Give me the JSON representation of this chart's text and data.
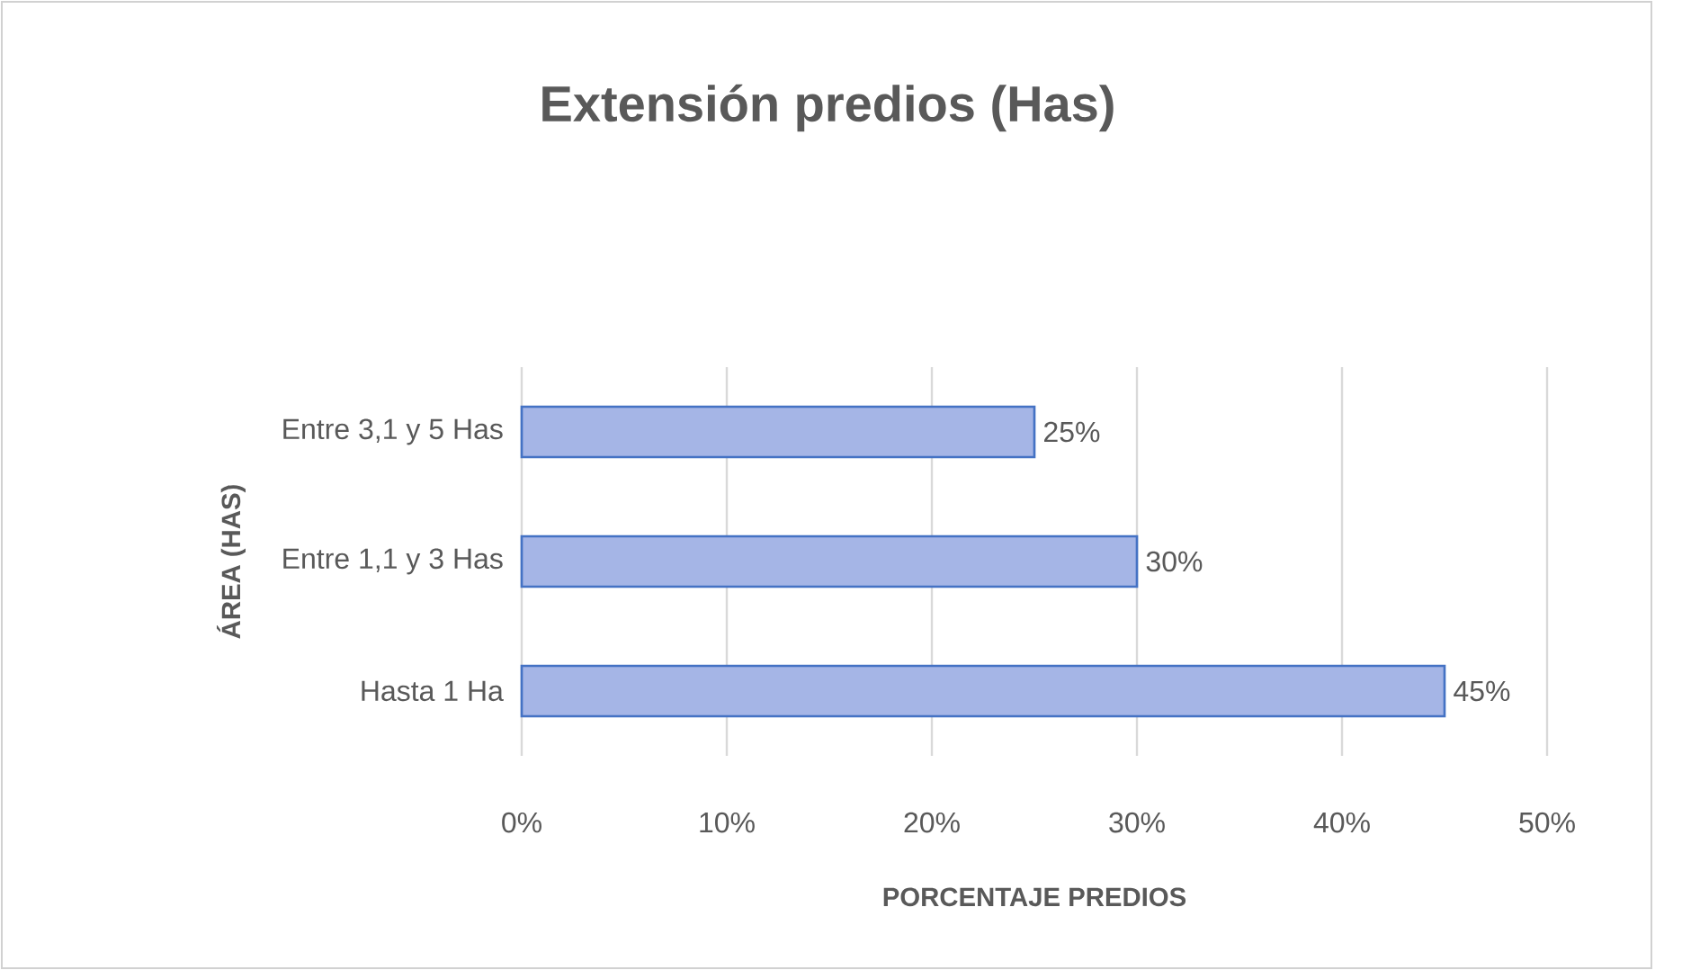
{
  "chart_data": {
    "type": "bar",
    "orientation": "horizontal",
    "title": "Extensión predios (Has)",
    "xlabel": "PORCENTAJE PREDIOS",
    "ylabel": "ÁREA (HAS)",
    "categories": [
      "Entre 3,1 y 5 Has",
      "Entre 1,1 y 3 Has",
      "Hasta 1 Ha"
    ],
    "values": [
      25,
      30,
      45
    ],
    "value_labels": [
      "25%",
      "30%",
      "45%"
    ],
    "color": "#a5b5e6",
    "xlim": [
      0,
      50
    ],
    "xticks": [
      {
        "value": 0,
        "label": "0%"
      },
      {
        "value": 10,
        "label": "10%"
      },
      {
        "value": 20,
        "label": "20%"
      },
      {
        "value": 30,
        "label": "30%"
      },
      {
        "value": 40,
        "label": "40%"
      },
      {
        "value": 50,
        "label": "50%"
      }
    ],
    "grid": "x"
  }
}
